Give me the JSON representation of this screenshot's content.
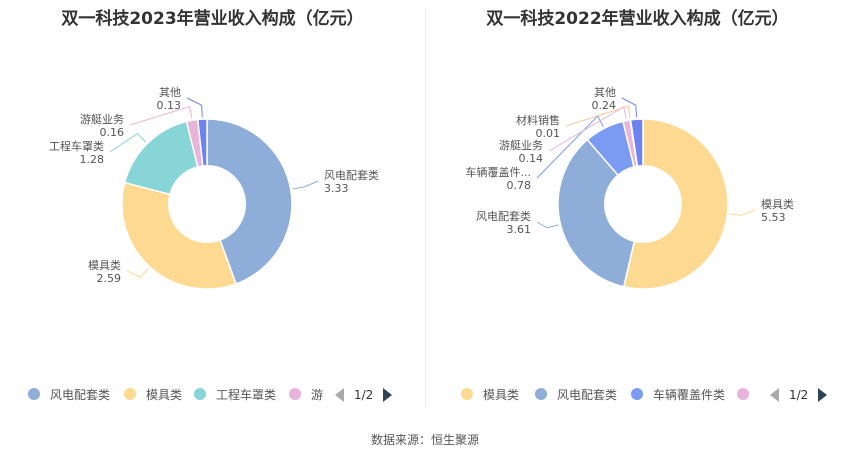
{
  "charts": [
    {
      "title": "双一科技2023年营业收入构成（亿元）",
      "legend_page": "1/2",
      "legend_visible": [
        "风电配套类",
        "模具类",
        "工程车罩类",
        "游"
      ],
      "chart_data": {
        "type": "pie",
        "title": "双一科技2023年营业收入构成（亿元）",
        "unit": "亿元",
        "inner_radius_ratio": 0.45,
        "slices": [
          {
            "name": "风电配套类",
            "value": 3.33,
            "color": "#8eadd9"
          },
          {
            "name": "模具类",
            "value": 2.59,
            "color": "#fed992"
          },
          {
            "name": "工程车罩类",
            "value": 1.28,
            "color": "#87d5d6"
          },
          {
            "name": "游艇业务",
            "value": 0.16,
            "color": "#e8b4d9"
          },
          {
            "name": "其他",
            "value": 0.13,
            "color": "#6d83f0"
          }
        ]
      }
    },
    {
      "title": "双一科技2022年营业收入构成（亿元）",
      "legend_page": "1/2",
      "legend_visible": [
        "模具类",
        "风电配套类",
        "车辆覆盖件类",
        ""
      ],
      "chart_data": {
        "type": "pie",
        "title": "双一科技2022年营业收入构成（亿元）",
        "unit": "亿元",
        "inner_radius_ratio": 0.45,
        "slices": [
          {
            "name": "模具类",
            "value": 5.53,
            "color": "#fed992"
          },
          {
            "name": "风电配套类",
            "value": 3.61,
            "color": "#8eadd9"
          },
          {
            "name": "车辆覆盖件类",
            "label_text": "车辆覆盖件...",
            "value": 0.78,
            "color": "#7b9bf2"
          },
          {
            "name": "游艇业务",
            "value": 0.14,
            "color": "#e8b4d9"
          },
          {
            "name": "材料销售",
            "value": 0.01,
            "color": "#f5c6a0"
          },
          {
            "name": "其他",
            "value": 0.24,
            "color": "#6d83f0"
          }
        ]
      }
    }
  ],
  "source": "数据来源：恒生聚源"
}
